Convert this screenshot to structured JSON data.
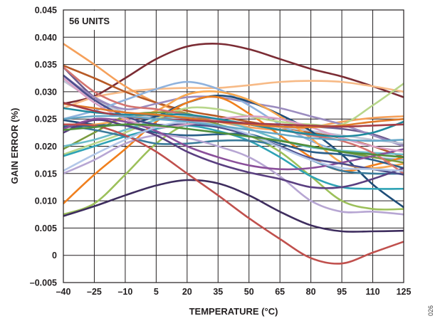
{
  "chart_data": {
    "type": "line",
    "annotation": "56 UNITS",
    "xlabel": "TEMPERATURE (°C)",
    "ylabel": "GAIN ERROR (%)",
    "figure_id": "026",
    "x_ticks": [
      -40,
      -25,
      -10,
      5,
      20,
      35,
      50,
      65,
      80,
      95,
      110,
      125
    ],
    "y_ticks": [
      -0.005,
      0,
      0.005,
      0.01,
      0.015,
      0.02,
      0.025,
      0.03,
      0.035,
      0.04,
      0.045
    ],
    "y_tick_labels": [
      "–0.005",
      "0",
      "0.005",
      "0.010",
      "0.015",
      "0.020",
      "0.025",
      "0.030",
      "0.035",
      "0.040",
      "0.045"
    ],
    "x_tick_labels": [
      "–40",
      "–25",
      "–10",
      "5",
      "20",
      "35",
      "50",
      "65",
      "80",
      "95",
      "110",
      "125"
    ],
    "xlim": [
      -40,
      125
    ],
    "ylim": [
      -0.005,
      0.045
    ],
    "grid": true,
    "x": [
      -40,
      -25,
      -10,
      5,
      20,
      35,
      50,
      65,
      80,
      95,
      110,
      125
    ],
    "series": [
      {
        "color": "#7b2c34",
        "values": [
          0.0278,
          0.0292,
          0.0325,
          0.036,
          0.0383,
          0.0388,
          0.0378,
          0.036,
          0.0342,
          0.0328,
          0.031,
          0.029
        ]
      },
      {
        "color": "#f7ba86",
        "values": [
          0.027,
          0.029,
          0.03,
          0.0305,
          0.0307,
          0.0307,
          0.0312,
          0.0318,
          0.032,
          0.0318,
          0.031,
          0.03
        ]
      },
      {
        "color": "#f5a05a",
        "values": [
          0.0388,
          0.035,
          0.031,
          0.028,
          0.026,
          0.0245,
          0.0235,
          0.023,
          0.0235,
          0.0245,
          0.0252,
          0.0255
        ]
      },
      {
        "color": "#b75a26",
        "values": [
          0.0348,
          0.0325,
          0.03,
          0.028,
          0.0265,
          0.0255,
          0.0245,
          0.0235,
          0.0225,
          0.0215,
          0.02,
          0.018
        ]
      },
      {
        "color": "#6c5b8e",
        "values": [
          0.0345,
          0.029,
          0.0262,
          0.0255,
          0.0252,
          0.0247,
          0.0242,
          0.0238,
          0.0236,
          0.0232,
          0.0222,
          0.0202
        ]
      },
      {
        "color": "#9b8cbf",
        "values": [
          0.033,
          0.029,
          0.0268,
          0.0278,
          0.029,
          0.029,
          0.028,
          0.027,
          0.0255,
          0.024,
          0.022,
          0.02
        ]
      },
      {
        "color": "#c0c5d6",
        "values": [
          0.032,
          0.0285,
          0.0262,
          0.0252,
          0.0248,
          0.0245,
          0.024,
          0.0235,
          0.0228,
          0.022,
          0.0212,
          0.0205
        ]
      },
      {
        "color": "#8fb2dd",
        "values": [
          0.025,
          0.0265,
          0.0285,
          0.0305,
          0.0318,
          0.0305,
          0.0275,
          0.024,
          0.021,
          0.019,
          0.018,
          0.0175
        ]
      },
      {
        "color": "#1e4d78",
        "values": [
          0.0248,
          0.024,
          0.024,
          0.0255,
          0.028,
          0.0293,
          0.0282,
          0.0258,
          0.0228,
          0.0185,
          0.013,
          0.0088
        ]
      },
      {
        "color": "#f07f1d",
        "values": [
          0.0095,
          0.0148,
          0.0195,
          0.0245,
          0.028,
          0.029,
          0.026,
          0.022,
          0.018,
          0.0155,
          0.0165,
          0.018
        ]
      },
      {
        "color": "#f7a74f",
        "values": [
          0.024,
          0.024,
          0.025,
          0.0265,
          0.0295,
          0.03,
          0.0285,
          0.0255,
          0.0215,
          0.017,
          0.016,
          0.0168
        ]
      },
      {
        "color": "#9cc05a",
        "values": [
          0.0075,
          0.0095,
          0.0148,
          0.0205,
          0.024,
          0.024,
          0.022,
          0.019,
          0.0145,
          0.01,
          0.0085,
          0.0085
        ]
      },
      {
        "color": "#b8d68a",
        "values": [
          0.0185,
          0.0205,
          0.0225,
          0.025,
          0.027,
          0.0268,
          0.0255,
          0.0245,
          0.024,
          0.024,
          0.0275,
          0.0315
        ]
      },
      {
        "color": "#7a9b3e",
        "values": [
          0.0195,
          0.0225,
          0.0255,
          0.0262,
          0.026,
          0.024,
          0.022,
          0.021,
          0.02,
          0.019,
          0.018,
          0.017
        ]
      },
      {
        "color": "#2fa3b5",
        "values": [
          0.0182,
          0.02,
          0.0218,
          0.0232,
          0.0238,
          0.0228,
          0.021,
          0.018,
          0.0145,
          0.0125,
          0.0122,
          0.0122
        ]
      },
      {
        "color": "#6bbcc9",
        "values": [
          0.02,
          0.0212,
          0.023,
          0.0248,
          0.0255,
          0.0248,
          0.0232,
          0.0212,
          0.0198,
          0.0192,
          0.0188,
          0.0185
        ]
      },
      {
        "color": "#3a7a9a",
        "values": [
          0.0238,
          0.023,
          0.0218,
          0.0205,
          0.0205,
          0.021,
          0.021,
          0.02,
          0.0175,
          0.0155,
          0.015,
          0.015
        ]
      },
      {
        "color": "#2b5f8a",
        "values": [
          0.0235,
          0.0238,
          0.0238,
          0.0225,
          0.022,
          0.0222,
          0.0222,
          0.0205,
          0.019,
          0.0185,
          0.0175,
          0.016
        ]
      },
      {
        "color": "#b7a6d3",
        "values": [
          0.015,
          0.0175,
          0.0205,
          0.022,
          0.0215,
          0.02,
          0.018,
          0.0145,
          0.01,
          0.008,
          0.008,
          0.0075
        ]
      },
      {
        "color": "#5a3f80",
        "values": [
          0.0225,
          0.0248,
          0.0238,
          0.022,
          0.019,
          0.0168,
          0.0152,
          0.014,
          0.0125,
          0.0125,
          0.014,
          0.016
        ]
      },
      {
        "color": "#8a4f9a",
        "values": [
          0.0232,
          0.025,
          0.0245,
          0.0228,
          0.02,
          0.018,
          0.0165,
          0.0158,
          0.016,
          0.017,
          0.0182,
          0.0195
        ]
      },
      {
        "color": "#3e2d5e",
        "values": [
          0.0072,
          0.009,
          0.011,
          0.0128,
          0.0138,
          0.0132,
          0.011,
          0.008,
          0.0055,
          0.0044,
          0.0044,
          0.0045
        ]
      },
      {
        "color": "#c0504d",
        "values": [
          0.024,
          0.0238,
          0.022,
          0.019,
          0.015,
          0.011,
          0.0068,
          0.003,
          -0.0005,
          -0.0015,
          0.0005,
          0.0025
        ]
      },
      {
        "color": "#d47470",
        "values": [
          0.0345,
          0.03,
          0.0275,
          0.0268,
          0.0258,
          0.0248,
          0.024,
          0.023,
          0.022,
          0.021,
          0.0188,
          0.015
        ]
      },
      {
        "color": "#4d4d8c",
        "values": [
          0.033,
          0.0285,
          0.0255,
          0.024,
          0.024,
          0.0235,
          0.022,
          0.02,
          0.0178,
          0.0168,
          0.0158,
          0.0148
        ]
      },
      {
        "color": "#d9a0c5",
        "values": [
          0.0325,
          0.028,
          0.025,
          0.0235,
          0.024,
          0.025,
          0.0255,
          0.025,
          0.0235,
          0.0215,
          0.02,
          0.019
        ]
      },
      {
        "color": "#1e8a9e",
        "values": [
          0.027,
          0.0262,
          0.0258,
          0.0258,
          0.0258,
          0.025,
          0.024,
          0.023,
          0.0222,
          0.0218,
          0.0225,
          0.0245
        ]
      },
      {
        "color": "#b3c7e8",
        "values": [
          0.0155,
          0.0185,
          0.0212,
          0.0235,
          0.0245,
          0.0238,
          0.0222,
          0.0198,
          0.0175,
          0.016,
          0.0158,
          0.0155
        ]
      },
      {
        "color": "#e07a2a",
        "values": [
          0.0278,
          0.027,
          0.0262,
          0.0258,
          0.0252,
          0.0245,
          0.024,
          0.0236,
          0.0235,
          0.0238,
          0.0245,
          0.025
        ]
      },
      {
        "color": "#a43d48",
        "values": [
          0.028,
          0.0265,
          0.0255,
          0.025,
          0.0248,
          0.0245,
          0.0242,
          0.024,
          0.0238,
          0.0236,
          0.0238,
          0.024
        ]
      },
      {
        "color": "#66a8c8",
        "values": [
          0.025,
          0.0255,
          0.0255,
          0.025,
          0.0245,
          0.0238,
          0.023,
          0.0222,
          0.0215,
          0.0212,
          0.021,
          0.0212
        ]
      },
      {
        "color": "#4f8f3a",
        "values": [
          0.023,
          0.0235,
          0.024,
          0.0238,
          0.0232,
          0.0225,
          0.0218,
          0.021,
          0.02,
          0.019,
          0.0185,
          0.018
        ]
      }
    ]
  }
}
